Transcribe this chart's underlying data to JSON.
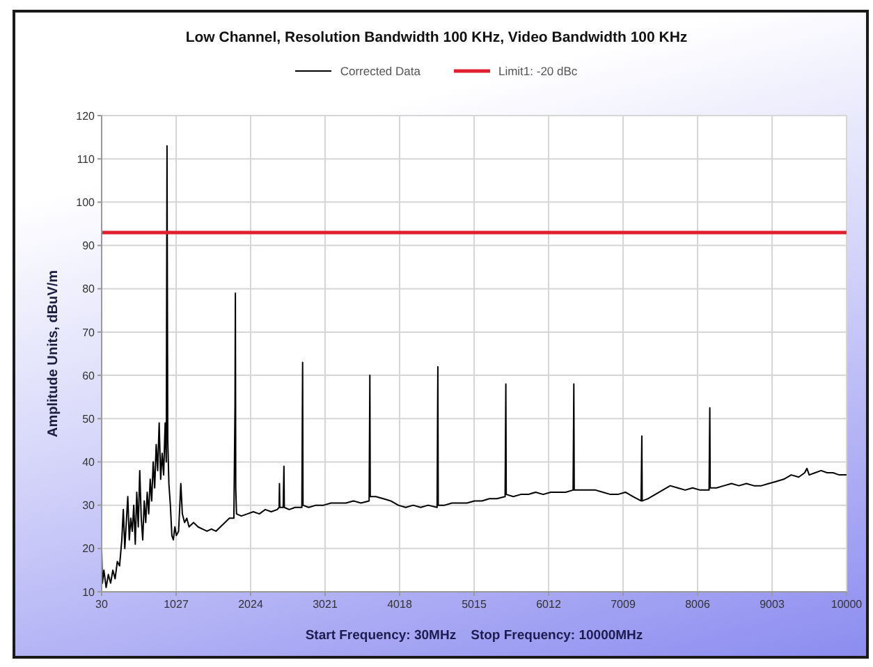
{
  "chart_data": {
    "type": "line",
    "title": "Low Channel, Resolution Bandwidth 100 KHz, Video Bandwidth 100 KHz",
    "xlabel": "Start Frequency: 30MHz    Stop Frequency: 10000MHz",
    "ylabel": "Amplitude Units, dBuV/m",
    "xlim": [
      30,
      10000
    ],
    "xticks": [
      30,
      1027,
      2024,
      3021,
      4018,
      5015,
      6012,
      7009,
      8006,
      9003,
      10000
    ],
    "ylim": [
      10,
      120
    ],
    "yticks": [
      10,
      20,
      30,
      40,
      50,
      60,
      70,
      80,
      90,
      100,
      110,
      120
    ],
    "grid": true,
    "legend": "top",
    "marker": "none",
    "line_style": "solid",
    "series": [
      {
        "name": "Corrected Data",
        "color": "#000000",
        "x": [
          30,
          40,
          60,
          90,
          120,
          150,
          180,
          210,
          240,
          270,
          300,
          320,
          340,
          360,
          380,
          400,
          420,
          440,
          460,
          480,
          500,
          520,
          540,
          560,
          580,
          600,
          620,
          640,
          660,
          680,
          700,
          720,
          740,
          760,
          780,
          800,
          820,
          840,
          860,
          880,
          895,
          905,
          915,
          930,
          950,
          970,
          990,
          1010,
          1030,
          1060,
          1090,
          1110,
          1140,
          1170,
          1200,
          1260,
          1320,
          1380,
          1440,
          1500,
          1560,
          1620,
          1680,
          1740,
          1800,
          1815,
          1820,
          1825,
          1835,
          1900,
          1980,
          2060,
          2140,
          2220,
          2300,
          2380,
          2405,
          2410,
          2415,
          2460,
          2470,
          2475,
          2540,
          2620,
          2710,
          2715,
          2720,
          2725,
          2800,
          2900,
          3000,
          3100,
          3200,
          3300,
          3400,
          3500,
          3610,
          3615,
          3620,
          3625,
          3700,
          3800,
          3900,
          4000,
          4100,
          4200,
          4300,
          4400,
          4520,
          4525,
          4530,
          4535,
          4620,
          4720,
          4820,
          4920,
          5020,
          5120,
          5220,
          5320,
          5430,
          5435,
          5440,
          5445,
          5540,
          5640,
          5740,
          5840,
          5940,
          6040,
          6140,
          6240,
          6340,
          6345,
          6350,
          6355,
          6440,
          6540,
          6640,
          6740,
          6840,
          6940,
          7040,
          7140,
          7250,
          7255,
          7260,
          7265,
          7340,
          7440,
          7540,
          7640,
          7740,
          7840,
          7940,
          8040,
          8160,
          8165,
          8170,
          8175,
          8260,
          8360,
          8460,
          8560,
          8660,
          8760,
          8860,
          8960,
          9060,
          9160,
          9260,
          9360,
          9440,
          9470,
          9500,
          9580,
          9660,
          9740,
          9820,
          9900,
          10000
        ],
        "values": [
          20,
          12,
          15,
          11,
          14,
          12,
          15,
          13,
          17,
          16,
          22,
          29,
          20,
          26,
          32,
          22,
          27,
          24,
          30,
          21,
          33,
          25,
          38,
          27,
          22,
          31,
          26,
          33,
          28,
          36,
          31,
          40,
          34,
          44,
          38,
          49,
          36,
          42,
          37,
          49,
          40,
          113,
          45,
          35,
          30,
          23,
          22,
          25,
          23,
          24,
          35,
          28,
          26,
          27,
          25,
          26,
          25,
          24.5,
          24,
          24.5,
          24,
          25,
          26,
          27,
          27,
          53,
          79,
          34,
          28,
          27.5,
          28,
          28.5,
          28,
          29,
          28.5,
          29,
          29.5,
          35,
          29.5,
          29.5,
          39,
          29.5,
          29,
          29.5,
          29.5,
          46,
          63,
          30,
          29.5,
          30,
          30,
          30.5,
          30.5,
          30.5,
          31,
          30.5,
          31,
          45,
          60,
          32,
          32,
          31.5,
          31,
          30,
          29.5,
          30,
          29.5,
          30,
          29.5,
          46,
          62,
          30,
          30,
          30.5,
          30.5,
          30.5,
          31,
          31,
          31.5,
          31.5,
          32,
          44.5,
          58,
          32.5,
          32,
          32.5,
          32.5,
          33,
          32.5,
          33,
          33,
          33,
          33.5,
          45,
          58,
          33.5,
          33.5,
          33.5,
          33.5,
          33,
          32.5,
          32.5,
          33,
          32,
          31,
          38,
          46,
          31,
          31.5,
          32.5,
          33.5,
          34.5,
          34,
          33.5,
          34,
          33.5,
          33.5,
          43,
          52.5,
          34,
          34,
          34.5,
          35,
          34.5,
          35,
          34.5,
          34.5,
          35,
          35.5,
          36,
          37,
          36.5,
          37.5,
          38.5,
          37,
          37.5,
          38,
          37.5,
          37.5,
          37,
          37
        ]
      },
      {
        "name": "Limit1: -20 dBc",
        "color": "#e0202e",
        "x": [
          30,
          10000
        ],
        "values": [
          93,
          93
        ]
      }
    ]
  }
}
